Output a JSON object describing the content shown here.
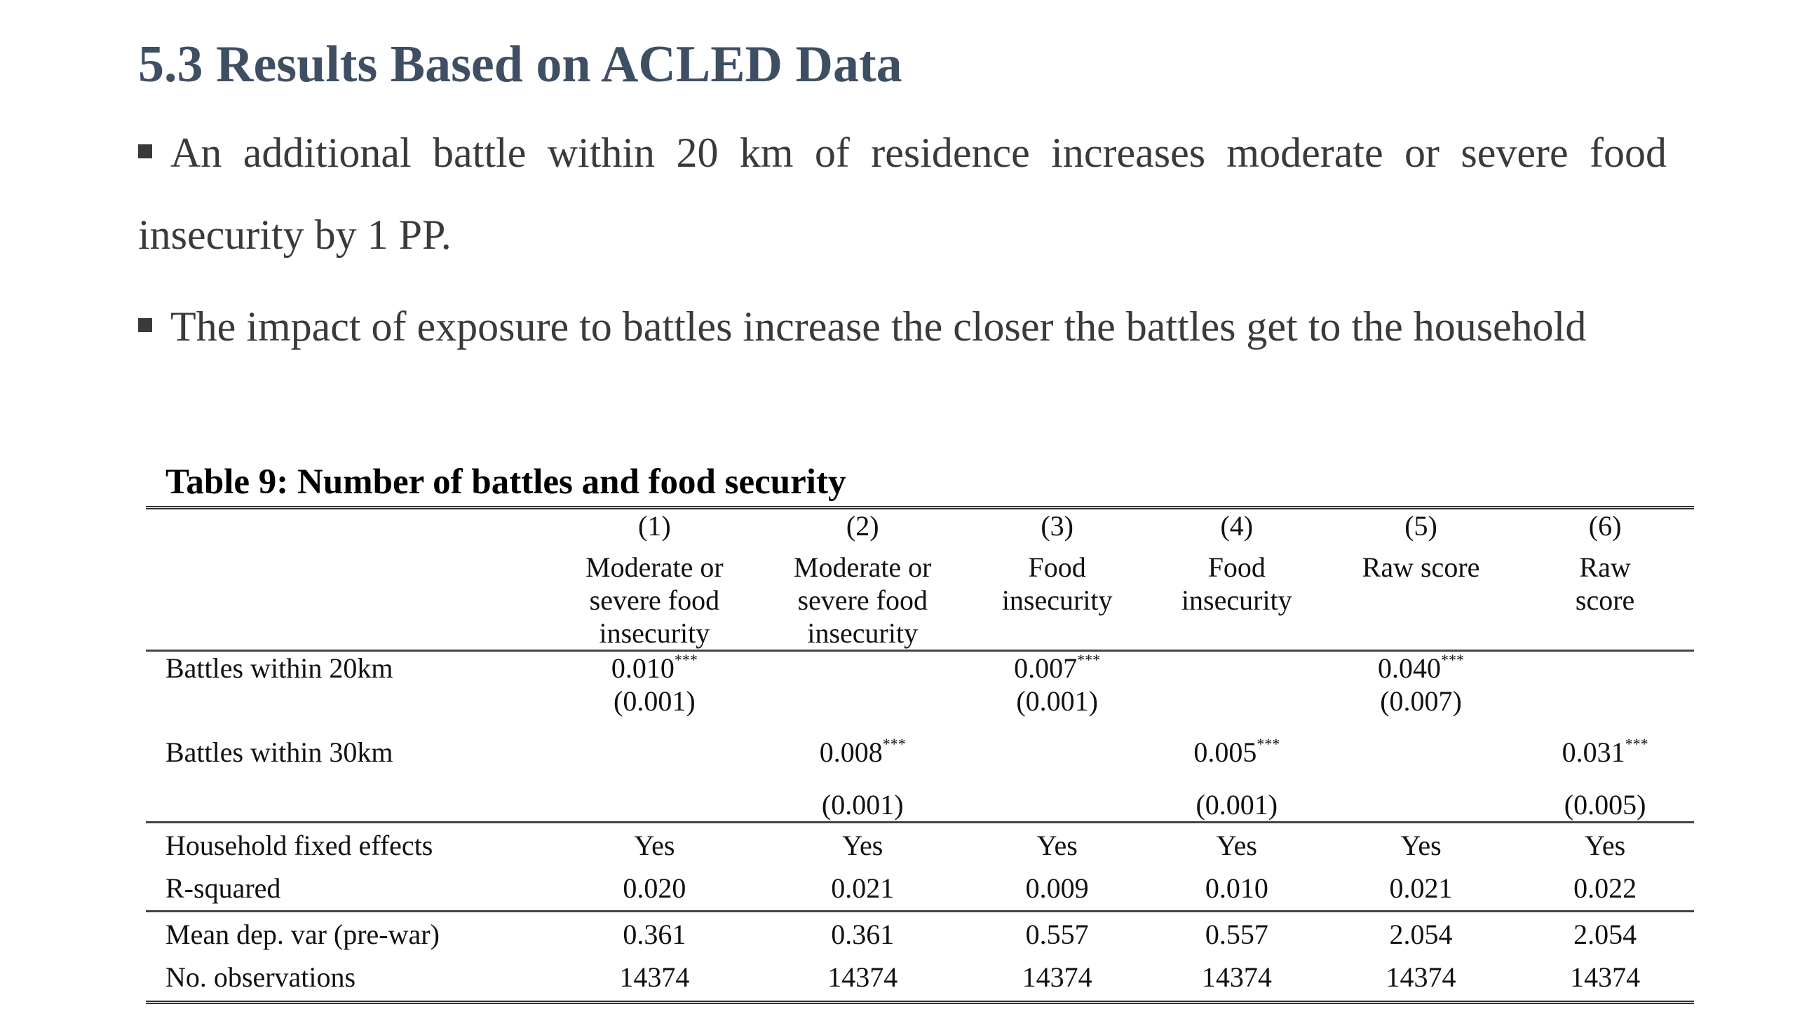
{
  "slide": {
    "title": "5.3 Results Based on ACLED Data",
    "bullets": [
      "An additional battle within 20 km of residence increases moderate or severe food insecurity by 1 PP.",
      "The impact of exposure to battles increase the closer the battles get to the household"
    ]
  },
  "table": {
    "caption": "Table 9: Number of battles and food security",
    "col_numbers": [
      "(1)",
      "(2)",
      "(3)",
      "(4)",
      "(5)",
      "(6)"
    ],
    "col_headers": [
      "Moderate or severe food insecurity",
      "Moderate or severe food insecurity",
      "Food insecurity",
      "Food insecurity",
      "Raw score",
      "Raw score"
    ],
    "rows": {
      "battles20": {
        "label": "Battles within 20km",
        "coef": [
          "0.010",
          "",
          "0.007",
          "",
          "0.040",
          ""
        ],
        "stars": [
          "***",
          "",
          "***",
          "",
          "***",
          ""
        ],
        "se": [
          "(0.001)",
          "",
          "(0.001)",
          "",
          "(0.007)",
          ""
        ]
      },
      "battles30": {
        "label": "Battles within 30km",
        "coef": [
          "",
          "0.008",
          "",
          "0.005",
          "",
          "0.031"
        ],
        "stars": [
          "",
          "***",
          "",
          "***",
          "",
          "***"
        ],
        "se": [
          "",
          "(0.001)",
          "",
          "(0.001)",
          "",
          "(0.005)"
        ]
      },
      "hh_fe": {
        "label": "Household fixed effects",
        "values": [
          "Yes",
          "Yes",
          "Yes",
          "Yes",
          "Yes",
          "Yes"
        ]
      },
      "r2": {
        "label": "R-squared",
        "values": [
          "0.020",
          "0.021",
          "0.009",
          "0.010",
          "0.021",
          "0.022"
        ]
      },
      "mean_dep": {
        "label": "Mean dep. var (pre-war)",
        "values": [
          "0.361",
          "0.361",
          "0.557",
          "0.557",
          "2.054",
          "2.054"
        ]
      },
      "n_obs": {
        "label": "No. observations",
        "values": [
          "14374",
          "14374",
          "14374",
          "14374",
          "14374",
          "14374"
        ]
      }
    }
  }
}
